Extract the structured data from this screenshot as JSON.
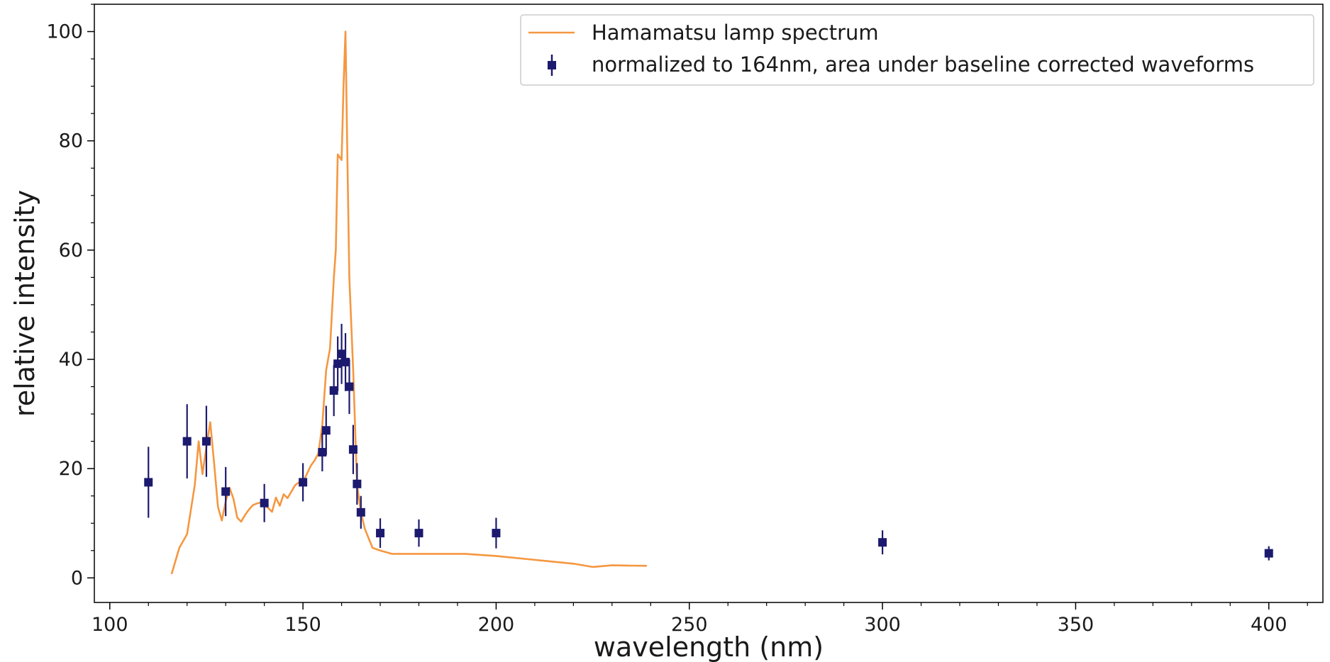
{
  "chart_data": {
    "type": "line",
    "title": "",
    "xlabel": "wavelength (nm)",
    "ylabel": "relative intensity",
    "xlim": [
      96,
      414
    ],
    "ylim": [
      -4.5,
      105
    ],
    "x_ticks": [
      100,
      150,
      200,
      250,
      300,
      350,
      400
    ],
    "y_ticks": [
      0,
      20,
      40,
      60,
      80,
      100
    ],
    "x_minor_step": 10,
    "y_minor_step": 5,
    "grid": false,
    "legend_position": "upper right",
    "series": [
      {
        "name": "Hamamatsu lamp spectrum",
        "kind": "line",
        "color": "#f59740",
        "x": [
          116,
          118,
          120,
          122,
          123,
          124,
          125,
          126,
          127,
          128,
          129,
          130,
          131,
          132,
          133,
          134,
          135,
          136,
          137,
          138,
          139,
          140,
          141,
          142,
          143,
          144,
          145,
          146,
          147,
          148,
          149,
          150,
          151,
          152,
          153,
          154,
          155,
          156,
          157,
          158,
          158.5,
          159,
          160,
          160.5,
          161,
          161.5,
          162,
          163,
          164,
          165,
          166,
          168,
          170,
          173,
          176,
          180,
          185,
          192,
          200,
          210,
          220,
          225,
          230,
          239
        ],
        "y": [
          0.7,
          5.5,
          8,
          17,
          25,
          19,
          24,
          28.5,
          21,
          13,
          10.5,
          14,
          16.5,
          14.5,
          11,
          10.3,
          11.5,
          12.5,
          13.3,
          13.6,
          13.8,
          13.5,
          12.8,
          12.1,
          14.7,
          13.2,
          15.3,
          14.6,
          15.8,
          17,
          17.5,
          17.5,
          19,
          20.5,
          21.5,
          22.8,
          28,
          38,
          42,
          55,
          60,
          77.5,
          76.5,
          90,
          100,
          77,
          55,
          38,
          17,
          12,
          9,
          5.5,
          5,
          4.4,
          4.4,
          4.4,
          4.4,
          4.4,
          4,
          3.3,
          2.6,
          2,
          2.3,
          2.2
        ]
      },
      {
        "name": "normalized to 164nm, area under baseline corrected waveforms",
        "kind": "errorbar",
        "color": "#1c1a6e",
        "marker": "square",
        "x": [
          110,
          120,
          125,
          130,
          140,
          150,
          155,
          156,
          158,
          159,
          160,
          161,
          162,
          163,
          164,
          165,
          170,
          180,
          200,
          300,
          400
        ],
        "y": [
          17.5,
          25,
          25,
          15.8,
          13.7,
          17.5,
          23,
          27,
          34.3,
          39.2,
          41,
          39.5,
          35,
          23.5,
          17.2,
          12,
          8.2,
          8.2,
          8.2,
          6.5,
          4.5
        ],
        "yerr": [
          6.5,
          6.8,
          6.5,
          4.5,
          3.5,
          3.5,
          3.5,
          4.5,
          4.7,
          5,
          5.5,
          5.3,
          5,
          4.5,
          3.8,
          3,
          2.7,
          2.5,
          2.8,
          2.2,
          1.3
        ]
      }
    ]
  }
}
